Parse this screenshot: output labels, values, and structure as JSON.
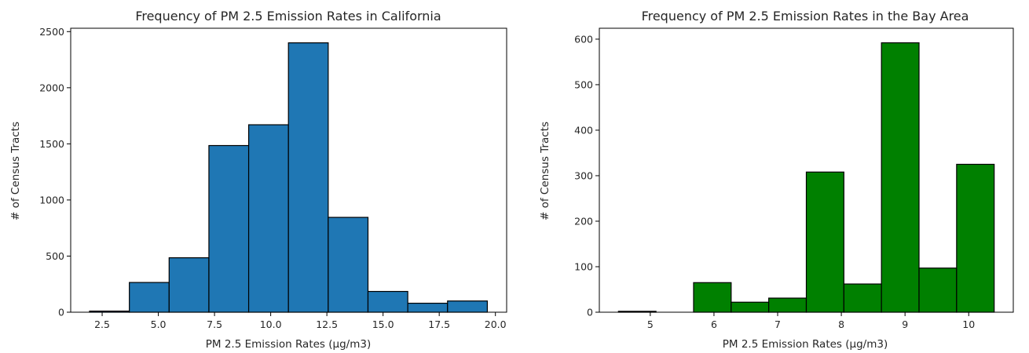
{
  "chart_data": [
    {
      "type": "bar",
      "title": "Frequency of PM 2.5 Emission Rates in California",
      "xlabel": "PM 2.5 Emission Rates (µg/m3)",
      "ylabel": "# of Census Tracts",
      "color": "#1f77b4",
      "xlim": [
        1.1,
        20.5
      ],
      "ylim": [
        0,
        2530
      ],
      "bin_edges": [
        1.94,
        3.71,
        5.48,
        7.25,
        9.02,
        10.79,
        12.56,
        14.33,
        16.1,
        17.87,
        19.64
      ],
      "values": [
        10,
        265,
        485,
        1485,
        1670,
        2400,
        845,
        185,
        80,
        100
      ],
      "xticks": [
        2.5,
        5.0,
        7.5,
        10.0,
        12.5,
        15.0,
        17.5,
        20.0
      ],
      "xtick_labels": [
        "2.5",
        "5.0",
        "7.5",
        "10.0",
        "12.5",
        "15.0",
        "17.5",
        "20.0"
      ],
      "yticks": [
        0,
        500,
        1000,
        1500,
        2000,
        2500
      ],
      "ytick_labels": [
        "0",
        "500",
        "1000",
        "1500",
        "2000",
        "2500"
      ],
      "grid": false
    },
    {
      "type": "bar",
      "title": "Frequency of PM 2.5 Emission Rates in the Bay Area",
      "xlabel": "PM 2.5 Emission Rates (µg/m3)",
      "ylabel": "# of Census Tracts",
      "color": "#008000",
      "xlim": [
        4.2,
        10.7
      ],
      "ylim": [
        0,
        624
      ],
      "bin_edges": [
        4.5,
        5.09,
        5.68,
        6.27,
        6.86,
        7.45,
        8.04,
        8.63,
        9.22,
        9.81,
        10.4
      ],
      "values": [
        2,
        0,
        65,
        22,
        31,
        308,
        62,
        592,
        97,
        325
      ],
      "xticks": [
        5,
        6,
        7,
        8,
        9,
        10
      ],
      "xtick_labels": [
        "5",
        "6",
        "7",
        "8",
        "9",
        "10"
      ],
      "yticks": [
        0,
        100,
        200,
        300,
        400,
        500,
        600
      ],
      "ytick_labels": [
        "0",
        "100",
        "200",
        "300",
        "400",
        "500",
        "600"
      ],
      "grid": false
    }
  ]
}
